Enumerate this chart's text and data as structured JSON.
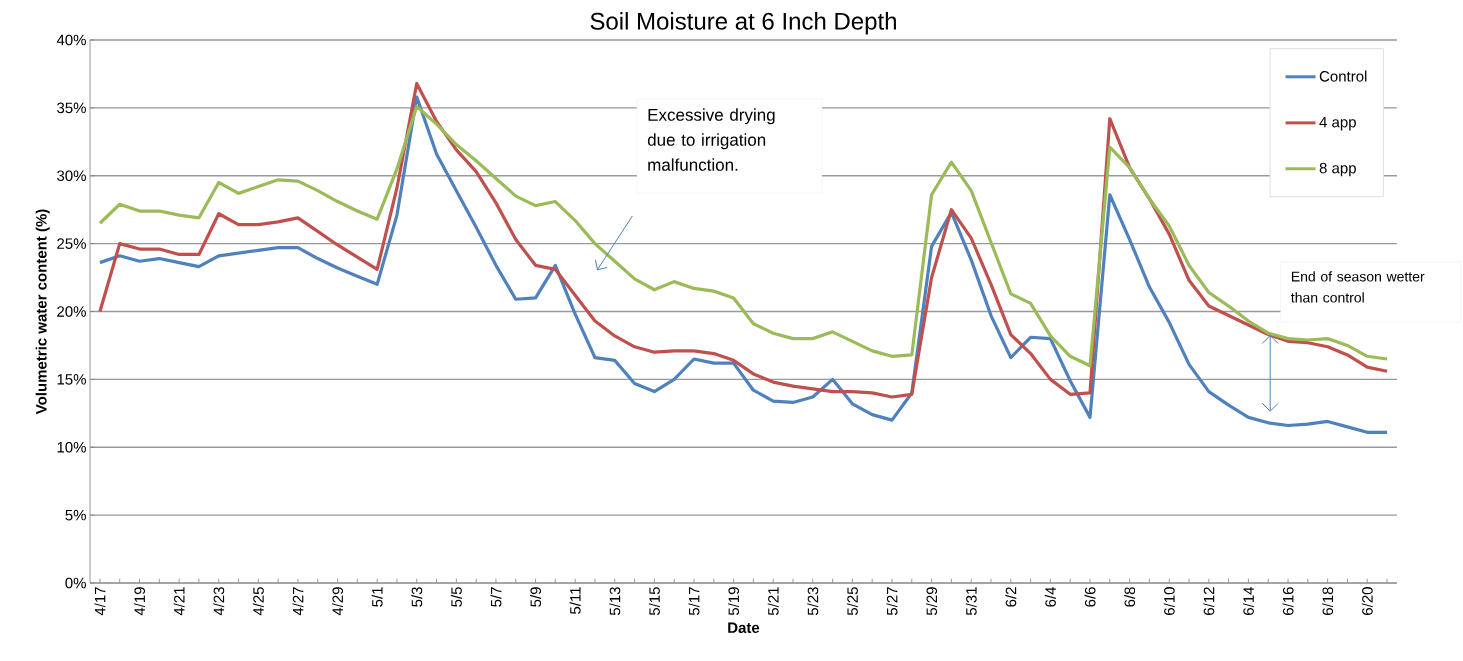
{
  "chart_data": {
    "type": "line",
    "title": "Soil Moisture at 6 Inch Depth",
    "xlabel": "Date",
    "ylabel": "Volumetric water content (%)",
    "categories": [
      "4/17",
      null,
      "4/19",
      null,
      "4/21",
      null,
      "4/23",
      null,
      "4/25",
      null,
      "4/27",
      null,
      "4/29",
      null,
      "5/1",
      null,
      "5/3",
      null,
      "5/5",
      null,
      "5/7",
      null,
      "5/9",
      null,
      "5/11",
      null,
      "5/13",
      null,
      "5/15",
      null,
      "5/17",
      null,
      "5/19",
      null,
      "5/21",
      null,
      "5/23",
      null,
      "5/25",
      null,
      "5/27",
      null,
      "5/29",
      null,
      "5/31",
      null,
      "6/2",
      null,
      "6/4",
      null,
      "6/6",
      null,
      "6/8",
      null,
      "6/10",
      null,
      "6/12",
      null,
      "6/14",
      null,
      "6/16",
      null,
      "6/18",
      null,
      "6/20",
      null
    ],
    "series": [
      {
        "name": "Control",
        "color": "#4f81bd",
        "values": [
          23.6,
          24.1,
          23.7,
          23.9,
          23.6,
          23.3,
          24.1,
          24.3,
          24.5,
          24.7,
          24.7,
          23.9,
          23.2,
          22.6,
          22.0,
          27.1,
          35.8,
          31.6,
          28.9,
          26.2,
          23.4,
          20.9,
          21.0,
          23.4,
          19.8,
          16.6,
          16.4,
          14.7,
          14.1,
          15.0,
          16.5,
          16.2,
          16.2,
          14.2,
          13.4,
          13.3,
          13.7,
          15.0,
          13.2,
          12.4,
          12.0,
          14.0,
          24.8,
          27.3,
          23.8,
          19.7,
          16.6,
          18.1,
          18.0,
          14.9,
          12.2,
          28.6,
          25.3,
          21.8,
          19.2,
          16.1,
          14.1,
          13.1,
          12.2,
          11.8,
          11.6,
          11.7,
          11.9,
          11.5,
          11.1,
          11.1
        ]
      },
      {
        "name": "4 app",
        "color": "#c0504d",
        "values": [
          20.0,
          25.0,
          24.6,
          24.6,
          24.2,
          24.2,
          27.2,
          26.4,
          26.4,
          26.6,
          26.9,
          25.9,
          24.9,
          24.0,
          23.1,
          29.1,
          36.8,
          34.0,
          31.9,
          30.3,
          28.0,
          25.3,
          23.4,
          23.1,
          21.2,
          19.3,
          18.2,
          17.4,
          17.0,
          17.1,
          17.1,
          16.9,
          16.4,
          15.4,
          14.8,
          14.5,
          14.3,
          14.1,
          14.1,
          14.0,
          13.7,
          13.9,
          22.5,
          27.5,
          25.4,
          22.0,
          18.3,
          16.9,
          15.0,
          13.9,
          14.0,
          34.2,
          30.6,
          28.3,
          25.7,
          22.3,
          20.4,
          19.7,
          19.0,
          18.3,
          17.8,
          17.7,
          17.4,
          16.8,
          15.9,
          15.6
        ]
      },
      {
        "name": "8 app",
        "color": "#9bbb59",
        "values": [
          26.5,
          27.9,
          27.4,
          27.4,
          27.1,
          26.9,
          29.5,
          28.7,
          29.2,
          29.7,
          29.6,
          28.9,
          28.1,
          27.4,
          26.8,
          30.5,
          35.1,
          33.8,
          32.3,
          31.1,
          29.8,
          28.5,
          27.8,
          28.1,
          26.7,
          25.0,
          23.7,
          22.4,
          21.6,
          22.2,
          21.7,
          21.5,
          21.0,
          19.1,
          18.4,
          18.0,
          18.0,
          18.5,
          17.8,
          17.1,
          16.7,
          16.8,
          28.6,
          31.0,
          28.9,
          25.1,
          21.3,
          20.6,
          18.2,
          16.7,
          16.0,
          32.1,
          30.6,
          28.3,
          26.3,
          23.4,
          21.4,
          20.4,
          19.3,
          18.4,
          18.0,
          17.9,
          18.0,
          17.5,
          16.7,
          16.5
        ]
      }
    ],
    "ylim": [
      0,
      40
    ],
    "yticks": [
      {
        "value": 0,
        "label": "0%"
      },
      {
        "value": 5,
        "label": "5%"
      },
      {
        "value": 10,
        "label": "10%"
      },
      {
        "value": 15,
        "label": "15%"
      },
      {
        "value": 20,
        "label": "20%"
      },
      {
        "value": 25,
        "label": "25%"
      },
      {
        "value": 30,
        "label": "30%"
      },
      {
        "value": 35,
        "label": "35%"
      },
      {
        "value": 40,
        "label": "40%"
      }
    ],
    "grid": "y",
    "legend": "top right",
    "marker": "none",
    "line_style": "solid",
    "annotations": [
      "Excessive drying due to irrigation malfunction.",
      "End of season wetter than control"
    ]
  }
}
